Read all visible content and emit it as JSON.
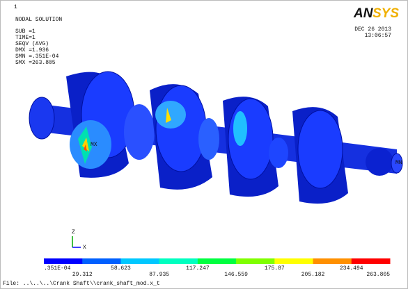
{
  "header": {
    "index": "1",
    "title": "NODAL SOLUTION",
    "lines": [
      "SUB =1",
      "TIME=1",
      "SEQV     (AVG)",
      "DMX =1.936",
      "SMN =.351E-04",
      "SMX =263.805"
    ]
  },
  "logo": {
    "left": "AN",
    "right": "SYS"
  },
  "date": "DEC 26 2013",
  "time": "13:06:57",
  "model": {
    "max_label": "MX",
    "min_label": "MN"
  },
  "triad": {
    "z": "Z",
    "x": "X"
  },
  "legend": {
    "colors": [
      "#0000ff",
      "#0060ff",
      "#00c8ff",
      "#00ffc0",
      "#00ff40",
      "#80ff00",
      "#ffff00",
      "#ff9000",
      "#ff0000"
    ],
    "labels": [
      ".351E-04",
      "29.312",
      "58.623",
      "87.935",
      "117.247",
      "146.559",
      "175.87",
      "205.182",
      "234.494",
      "263.805"
    ]
  },
  "footer": "File: ..\\..\\..\\Crank Shaft\\\\crank_shaft_mod.x_t"
}
